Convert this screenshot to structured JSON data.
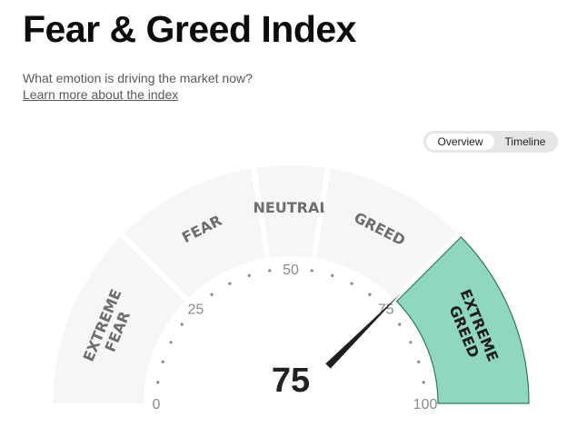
{
  "header": {
    "title": "Fear & Greed Index",
    "subtitle": "What emotion is driving the market now?",
    "learn_more": "Learn more about the index"
  },
  "view_toggle": {
    "options": [
      "Overview",
      "Timeline"
    ],
    "selected": "Overview"
  },
  "gauge": {
    "value": 75,
    "min": 0,
    "max": 100,
    "active_segment": "extreme-greed",
    "active_color": "#8fd7c0",
    "inactive_color": "#f6f6f6",
    "needle_color": "#1e1e1e",
    "segments": [
      {
        "id": "extreme-fear",
        "from": 0,
        "to": 25,
        "lines": [
          "EXTREME",
          "FEAR"
        ]
      },
      {
        "id": "fear",
        "from": 25,
        "to": 45,
        "lines": [
          "FEAR"
        ]
      },
      {
        "id": "neutral",
        "from": 45,
        "to": 55,
        "lines": [
          "NEUTRAL"
        ]
      },
      {
        "id": "greed",
        "from": 55,
        "to": 75,
        "lines": [
          "GREED"
        ]
      },
      {
        "id": "extreme-greed",
        "from": 75,
        "to": 100,
        "lines": [
          "EXTREME",
          "GREED"
        ]
      }
    ],
    "tick_labels": [
      "0",
      "25",
      "50",
      "75",
      "100"
    ]
  }
}
